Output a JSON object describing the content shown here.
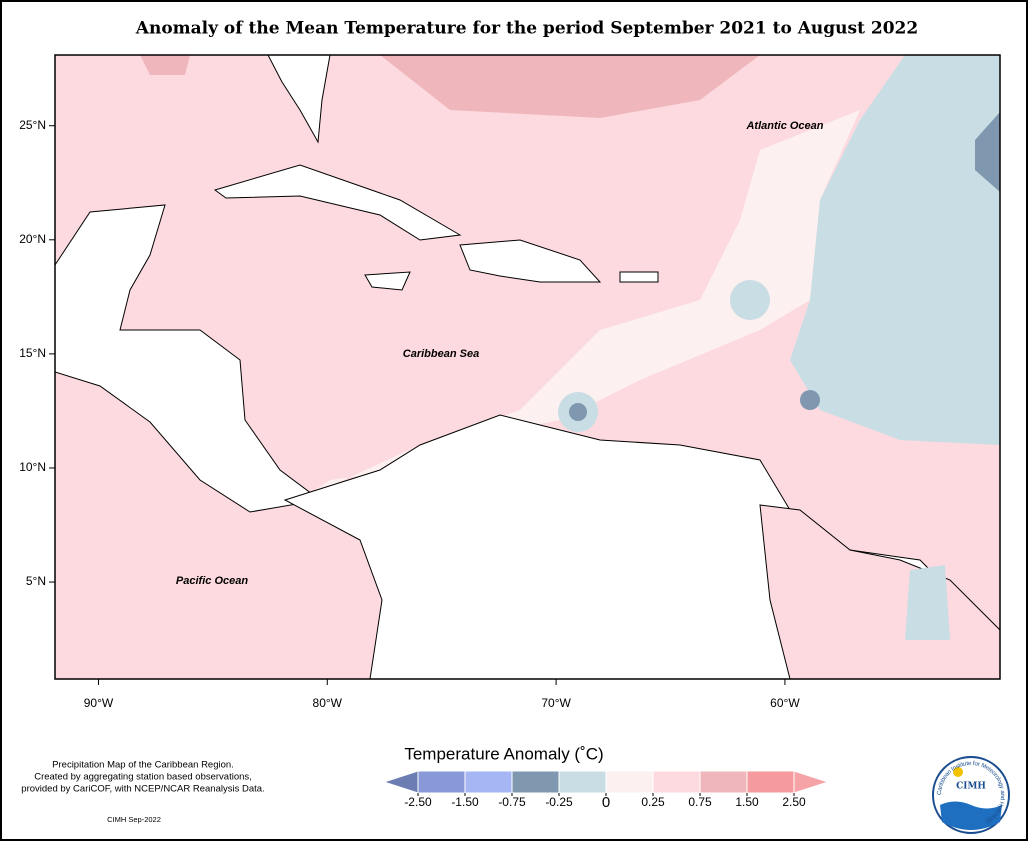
{
  "header": {
    "title": "Anomaly of the Mean Temperature for the period September 2021 to August 2022"
  },
  "map": {
    "xlim": [
      -91.9,
      -50.6
    ],
    "ylim": [
      0.75,
      28.1
    ],
    "xticks": [
      {
        "value": -90,
        "label": "90°W"
      },
      {
        "value": -80,
        "label": "80°W"
      },
      {
        "value": -70,
        "label": "70°W"
      },
      {
        "value": -60,
        "label": "60°W"
      }
    ],
    "yticks": [
      {
        "value": 5,
        "label": "5°N"
      },
      {
        "value": 10,
        "label": "10°N"
      },
      {
        "value": 15,
        "label": "15°N"
      },
      {
        "value": 20,
        "label": "20°N"
      },
      {
        "value": 25,
        "label": "25°N"
      }
    ],
    "labels": [
      "Atlantic Ocean",
      "Caribbean Sea",
      "Pacific Ocean"
    ]
  },
  "legend": {
    "title": "Temperature Anomaly (˚C)",
    "ticks": [
      {
        "value": -2.5,
        "label": "-2.50"
      },
      {
        "value": -1.5,
        "label": "-1.50"
      },
      -0.75,
      -0.25,
      0,
      0.25,
      0.75,
      {
        "value": 1.5,
        "label": "1.50"
      },
      {
        "value": 2.5,
        "label": "2.50"
      }
    ],
    "colors": [
      "#6b7db3",
      "#8898d8",
      "#a6b5f3",
      "#7f98b0",
      "#c9dde4",
      "#fdf0f0",
      "#fcdadf",
      "#efb7bb",
      "#f59a9e",
      "#f5a3a6"
    ]
  },
  "notes": [
    "Precipitation Map of the Caribbean Region.",
    "Created by aggregating station based observations,",
    "provided by CariCOF, with NCEP/NCAR Reanalysis Data."
  ],
  "footer": "CIMH Sep-2022",
  "logo": {
    "name": "CIMH",
    "ring": "Caribbean Institute for Meteorology and Hydrology"
  }
}
